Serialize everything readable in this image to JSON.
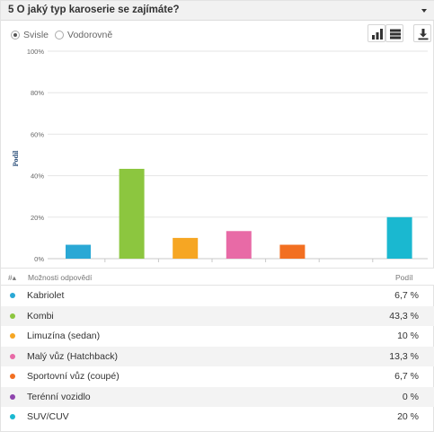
{
  "question": {
    "title": "5 O jaký typ karoserie se zajímáte?"
  },
  "orientation": {
    "options": [
      "Svisle",
      "Vodorovně"
    ],
    "selected": "Svisle"
  },
  "toolbar": {
    "buttons": [
      "bar-chart-icon",
      "table-view-icon",
      "download-icon"
    ]
  },
  "table": {
    "headers": {
      "index": "#▴",
      "answer": "Možnosti odpovědí",
      "share": "Podíl"
    },
    "rows": [
      {
        "label": "Kabriolet",
        "value": "6,7 %",
        "color": "#2aa8d5"
      },
      {
        "label": "Kombi",
        "value": "43,3 %",
        "color": "#8cc63f"
      },
      {
        "label": "Limuzína (sedan)",
        "value": "10 %",
        "color": "#f6a623"
      },
      {
        "label": "Malý vůz (Hatchback)",
        "value": "13,3 %",
        "color": "#e86aa6"
      },
      {
        "label": "Sportovní vůz (coupé)",
        "value": "6,7 %",
        "color": "#f26f21"
      },
      {
        "label": "Terénní vozidlo",
        "value": "0 %",
        "color": "#8e44ad"
      },
      {
        "label": "SUV/CUV",
        "value": "20 %",
        "color": "#1ab8d0"
      }
    ]
  },
  "chart_data": {
    "type": "bar",
    "categories": [
      "Kabriolet",
      "Kombi",
      "Limuzína (sedan)",
      "Malý vůz (Hatchback)",
      "Sportovní vůz (coupé)",
      "Terénní vozidlo",
      "SUV/CUV"
    ],
    "values": [
      6.7,
      43.3,
      10,
      13.3,
      6.7,
      0,
      20
    ],
    "colors": [
      "#2aa8d5",
      "#8cc63f",
      "#f6a623",
      "#e86aa6",
      "#f26f21",
      "#8e44ad",
      "#1ab8d0"
    ],
    "ylabel": "Podíl",
    "yticks": [
      "0%",
      "20%",
      "40%",
      "60%",
      "80%",
      "100%"
    ],
    "ylim": [
      0,
      100
    ],
    "grid": true
  }
}
